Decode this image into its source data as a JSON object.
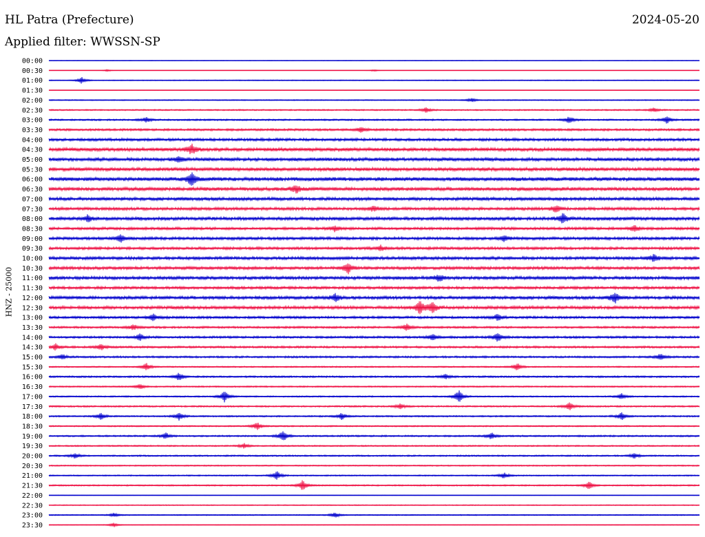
{
  "header": {
    "station": "HL Patra (Prefecture)",
    "filter": "Applied filter: WWSSN-SP",
    "date": "2024-05-20"
  },
  "chart_data": {
    "type": "line",
    "title": "HL Patra (Prefecture)",
    "subtitle": "Applied filter: WWSSN-SP",
    "ylabel": "HNZ - 25000",
    "date": "2024-05-20",
    "row_labels": [
      "00:00",
      "00:30",
      "01:00",
      "01:30",
      "02:00",
      "02:30",
      "03:00",
      "03:30",
      "04:00",
      "04:30",
      "05:00",
      "05:30",
      "06:00",
      "06:30",
      "07:00",
      "07:30",
      "08:00",
      "08:30",
      "09:00",
      "09:30",
      "10:00",
      "10:30",
      "11:00",
      "11:30",
      "12:00",
      "12:30",
      "13:00",
      "13:30",
      "14:00",
      "14:30",
      "15:00",
      "15:30",
      "16:00",
      "16:30",
      "17:00",
      "17:30",
      "18:00",
      "18:30",
      "19:00",
      "19:30",
      "20:00",
      "20:30",
      "21:00",
      "21:30",
      "22:00",
      "22:30",
      "23:00",
      "23:30"
    ],
    "series_colors": [
      "#0000cc",
      "#ee1144"
    ],
    "noise_level": [
      0.3,
      0.2,
      0.6,
      0.2,
      0.7,
      1.0,
      1.2,
      1.6,
      2.0,
      2.6,
      2.5,
      2.6,
      2.8,
      2.6,
      2.4,
      2.2,
      2.4,
      2.0,
      2.1,
      2.0,
      2.3,
      2.2,
      2.4,
      2.0,
      2.3,
      2.3,
      1.8,
      1.5,
      1.6,
      1.5,
      1.4,
      1.0,
      1.3,
      1.0,
      1.0,
      1.2,
      1.1,
      1.0,
      1.2,
      1.0,
      1.1,
      0.9,
      0.9,
      1.0,
      0.3,
      0.7,
      0.8,
      0.5
    ],
    "bursts": [
      [
        1,
        0.09,
        1.5
      ],
      [
        1,
        0.5,
        1.5
      ],
      [
        2,
        0.05,
        5
      ],
      [
        4,
        0.65,
        3
      ],
      [
        5,
        0.58,
        4
      ],
      [
        5,
        0.93,
        3
      ],
      [
        6,
        0.15,
        4
      ],
      [
        6,
        0.8,
        5
      ],
      [
        6,
        0.95,
        6
      ],
      [
        7,
        0.48,
        4
      ],
      [
        9,
        0.22,
        8
      ],
      [
        10,
        0.2,
        4
      ],
      [
        12,
        0.22,
        10
      ],
      [
        13,
        0.38,
        6
      ],
      [
        15,
        0.5,
        4
      ],
      [
        15,
        0.78,
        5
      ],
      [
        16,
        0.06,
        5
      ],
      [
        16,
        0.79,
        8
      ],
      [
        17,
        0.44,
        4
      ],
      [
        17,
        0.9,
        5
      ],
      [
        18,
        0.11,
        6
      ],
      [
        18,
        0.7,
        4
      ],
      [
        19,
        0.51,
        4
      ],
      [
        20,
        0.93,
        6
      ],
      [
        21,
        0.46,
        8
      ],
      [
        22,
        0.6,
        5
      ],
      [
        24,
        0.44,
        6
      ],
      [
        24,
        0.87,
        8
      ],
      [
        25,
        0.57,
        10
      ],
      [
        25,
        0.59,
        8
      ],
      [
        26,
        0.16,
        6
      ],
      [
        26,
        0.69,
        5
      ],
      [
        27,
        0.13,
        4
      ],
      [
        27,
        0.55,
        5
      ],
      [
        28,
        0.14,
        5
      ],
      [
        28,
        0.59,
        5
      ],
      [
        28,
        0.69,
        7
      ],
      [
        29,
        0.01,
        5
      ],
      [
        29,
        0.08,
        5
      ],
      [
        30,
        0.02,
        4
      ],
      [
        30,
        0.94,
        5
      ],
      [
        31,
        0.15,
        6
      ],
      [
        31,
        0.72,
        6
      ],
      [
        32,
        0.2,
        6
      ],
      [
        32,
        0.61,
        4
      ],
      [
        33,
        0.14,
        4
      ],
      [
        34,
        0.27,
        9
      ],
      [
        34,
        0.63,
        10
      ],
      [
        34,
        0.88,
        5
      ],
      [
        35,
        0.54,
        4
      ],
      [
        35,
        0.8,
        6
      ],
      [
        36,
        0.08,
        5
      ],
      [
        36,
        0.2,
        6
      ],
      [
        36,
        0.45,
        5
      ],
      [
        36,
        0.88,
        6
      ],
      [
        37,
        0.32,
        6
      ],
      [
        38,
        0.18,
        5
      ],
      [
        38,
        0.36,
        8
      ],
      [
        38,
        0.68,
        5
      ],
      [
        39,
        0.3,
        4
      ],
      [
        40,
        0.04,
        4
      ],
      [
        40,
        0.9,
        4
      ],
      [
        42,
        0.35,
        7
      ],
      [
        42,
        0.7,
        5
      ],
      [
        43,
        0.39,
        8
      ],
      [
        43,
        0.83,
        6
      ],
      [
        46,
        0.1,
        3
      ],
      [
        46,
        0.44,
        4
      ],
      [
        47,
        0.1,
        3
      ]
    ]
  }
}
